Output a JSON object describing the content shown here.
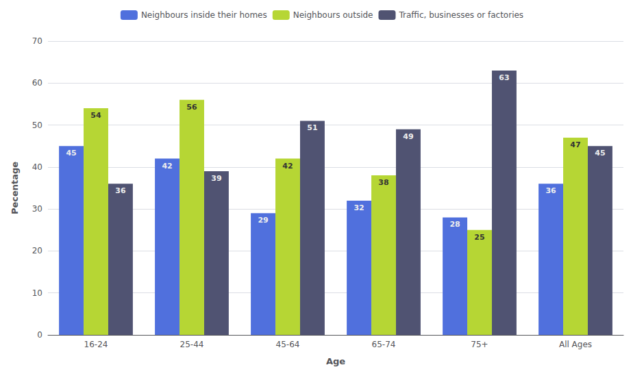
{
  "chart_data": {
    "type": "bar",
    "categories": [
      "16-24",
      "25-44",
      "45-64",
      "65-74",
      "75+",
      "All Ages"
    ],
    "series": [
      {
        "name": "Neighbours inside their homes",
        "values": [
          45,
          42,
          29,
          32,
          28,
          36
        ]
      },
      {
        "name": "Neighbours outside",
        "values": [
          54,
          56,
          42,
          38,
          25,
          47
        ]
      },
      {
        "name": "Traffic, businesses or factories",
        "values": [
          36,
          39,
          51,
          49,
          63,
          45
        ]
      }
    ],
    "xlabel": "Age",
    "ylabel": "Pecentage",
    "ylim": [
      0,
      70
    ],
    "yticks": [
      0,
      10,
      20,
      30,
      40,
      50,
      60,
      70
    ],
    "grid": true,
    "legend": "top",
    "data_labels": true
  }
}
